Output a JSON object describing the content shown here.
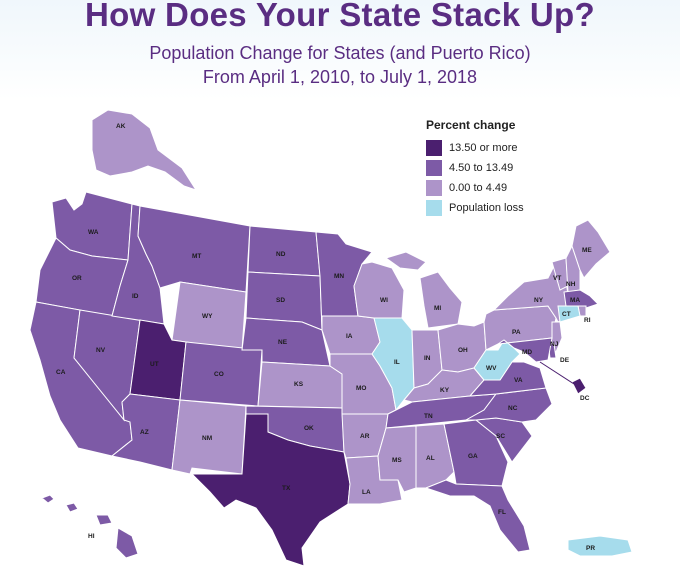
{
  "title": "How Does Your State Stack Up?",
  "subtitle_line1": "Population Change for States (and Puerto Rico)",
  "subtitle_line2": "From April 1, 2010, to July 1, 2018",
  "legend": {
    "title": "Percent change",
    "items": [
      {
        "label": "13.50 or more",
        "color": "#4b1f6f"
      },
      {
        "label": "4.50 to 13.49",
        "color": "#7d5aa6"
      },
      {
        "label": "0.00 to 4.49",
        "color": "#ad94c9"
      },
      {
        "label": "Population loss",
        "color": "#a6dcec"
      }
    ]
  },
  "map": {
    "category_colors": {
      "high": "#4b1f6f",
      "mid": "#7d5aa6",
      "low": "#ad94c9",
      "loss": "#a6dcec"
    },
    "states": [
      {
        "code": "AK",
        "category": "low"
      },
      {
        "code": "HI",
        "category": "mid"
      },
      {
        "code": "WA",
        "category": "mid"
      },
      {
        "code": "OR",
        "category": "mid"
      },
      {
        "code": "CA",
        "category": "mid"
      },
      {
        "code": "NV",
        "category": "mid"
      },
      {
        "code": "ID",
        "category": "mid"
      },
      {
        "code": "MT",
        "category": "mid"
      },
      {
        "code": "WY",
        "category": "low"
      },
      {
        "code": "UT",
        "category": "high"
      },
      {
        "code": "AZ",
        "category": "mid"
      },
      {
        "code": "CO",
        "category": "mid"
      },
      {
        "code": "NM",
        "category": "low"
      },
      {
        "code": "ND",
        "category": "mid"
      },
      {
        "code": "SD",
        "category": "mid"
      },
      {
        "code": "NE",
        "category": "mid"
      },
      {
        "code": "KS",
        "category": "low"
      },
      {
        "code": "OK",
        "category": "mid"
      },
      {
        "code": "TX",
        "category": "high"
      },
      {
        "code": "MN",
        "category": "mid"
      },
      {
        "code": "IA",
        "category": "low"
      },
      {
        "code": "MO",
        "category": "low"
      },
      {
        "code": "AR",
        "category": "low"
      },
      {
        "code": "LA",
        "category": "low"
      },
      {
        "code": "WI",
        "category": "low"
      },
      {
        "code": "IL",
        "category": "loss"
      },
      {
        "code": "MI",
        "category": "low"
      },
      {
        "code": "IN",
        "category": "low"
      },
      {
        "code": "OH",
        "category": "low"
      },
      {
        "code": "KY",
        "category": "low"
      },
      {
        "code": "TN",
        "category": "mid"
      },
      {
        "code": "MS",
        "category": "low"
      },
      {
        "code": "AL",
        "category": "low"
      },
      {
        "code": "GA",
        "category": "mid"
      },
      {
        "code": "FL",
        "category": "mid"
      },
      {
        "code": "SC",
        "category": "mid"
      },
      {
        "code": "NC",
        "category": "mid"
      },
      {
        "code": "VA",
        "category": "mid"
      },
      {
        "code": "WV",
        "category": "loss"
      },
      {
        "code": "PA",
        "category": "low"
      },
      {
        "code": "NY",
        "category": "low"
      },
      {
        "code": "VT",
        "category": "low"
      },
      {
        "code": "NH",
        "category": "low"
      },
      {
        "code": "ME",
        "category": "low"
      },
      {
        "code": "MA",
        "category": "mid"
      },
      {
        "code": "RI",
        "category": "low"
      },
      {
        "code": "CT",
        "category": "loss"
      },
      {
        "code": "NJ",
        "category": "low"
      },
      {
        "code": "DE",
        "category": "mid"
      },
      {
        "code": "MD",
        "category": "mid"
      },
      {
        "code": "DC",
        "category": "high"
      },
      {
        "code": "PR",
        "category": "loss"
      }
    ]
  }
}
